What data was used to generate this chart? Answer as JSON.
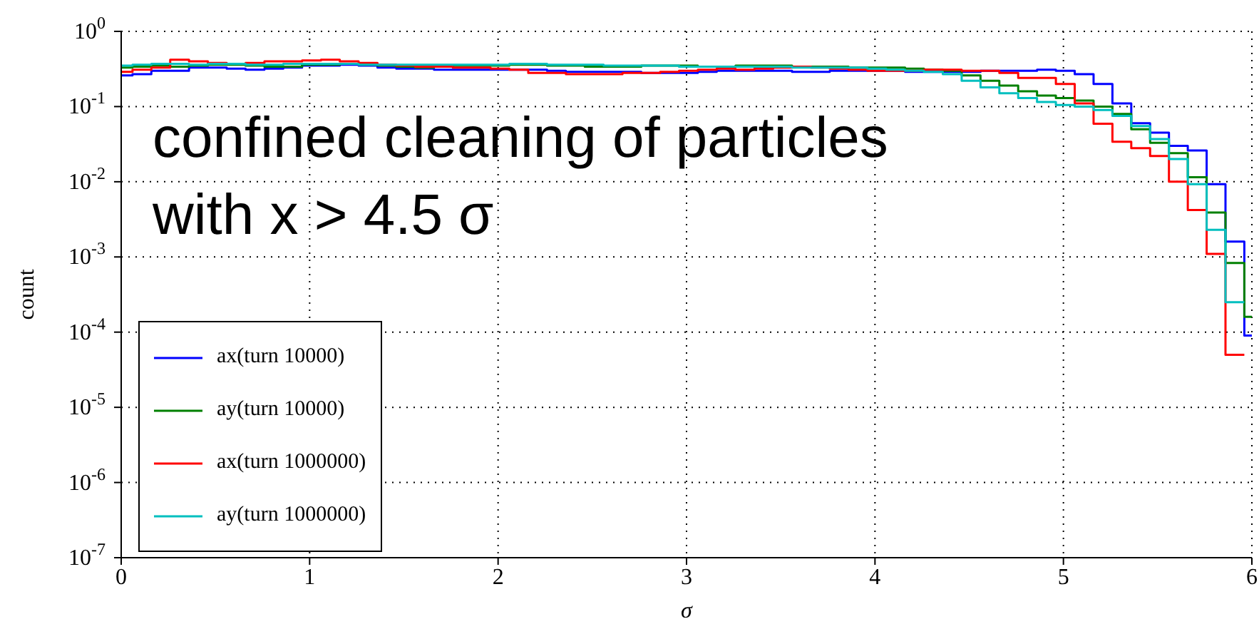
{
  "chart_data": {
    "type": "histogram",
    "xlabel": "σ",
    "ylabel": "count",
    "annotations": [
      "confined cleaning of particles",
      "with x > 4.5 σ"
    ],
    "bins": [
      0,
      0.06,
      0.16,
      0.26,
      0.36,
      0.46,
      0.56,
      0.66,
      0.76,
      0.86,
      0.96,
      1.06,
      1.16,
      1.26,
      1.36,
      1.46,
      1.56,
      1.66,
      1.76,
      1.86,
      1.96,
      2.06,
      2.16,
      2.26,
      2.36,
      2.46,
      2.56,
      2.66,
      2.76,
      2.86,
      2.96,
      3.06,
      3.16,
      3.26,
      3.36,
      3.46,
      3.56,
      3.66,
      3.76,
      3.86,
      3.96,
      4.06,
      4.16,
      4.26,
      4.36,
      4.46,
      4.56,
      4.66,
      4.76,
      4.86,
      4.96,
      5.06,
      5.16,
      5.26,
      5.36,
      5.46,
      5.56,
      5.66,
      5.76,
      5.86,
      5.96,
      6
    ],
    "series": [
      {
        "name": "ax(turn 10000)",
        "color": "#0000ff",
        "values": [
          0.26,
          0.27,
          0.3,
          0.3,
          0.33,
          0.33,
          0.32,
          0.31,
          0.32,
          0.33,
          0.35,
          0.35,
          0.36,
          0.35,
          0.33,
          0.32,
          0.32,
          0.31,
          0.31,
          0.31,
          0.31,
          0.31,
          0.31,
          0.3,
          0.29,
          0.29,
          0.29,
          0.29,
          0.28,
          0.28,
          0.28,
          0.29,
          0.3,
          0.3,
          0.3,
          0.3,
          0.29,
          0.29,
          0.3,
          0.3,
          0.3,
          0.3,
          0.29,
          0.29,
          0.29,
          0.29,
          0.3,
          0.3,
          0.3,
          0.31,
          0.3,
          0.27,
          0.2,
          0.11,
          0.06,
          0.045,
          0.03,
          0.026,
          0.0093,
          0.0016,
          9e-05
        ]
      },
      {
        "name": "ay(turn 10000)",
        "color": "#008000",
        "values": [
          0.33,
          0.34,
          0.35,
          0.34,
          0.35,
          0.36,
          0.36,
          0.35,
          0.34,
          0.34,
          0.36,
          0.36,
          0.37,
          0.36,
          0.35,
          0.34,
          0.33,
          0.34,
          0.35,
          0.35,
          0.35,
          0.36,
          0.36,
          0.35,
          0.35,
          0.34,
          0.34,
          0.34,
          0.35,
          0.35,
          0.35,
          0.34,
          0.34,
          0.35,
          0.35,
          0.35,
          0.34,
          0.34,
          0.34,
          0.33,
          0.33,
          0.33,
          0.32,
          0.31,
          0.3,
          0.26,
          0.22,
          0.19,
          0.16,
          0.14,
          0.13,
          0.12,
          0.1,
          0.08,
          0.05,
          0.033,
          0.024,
          0.0115,
          0.0039,
          0.00083,
          0.00016
        ]
      },
      {
        "name": "ax(turn 1000000)",
        "color": "#ff0000",
        "bins": [
          0,
          0.06,
          0.16,
          0.26,
          0.36,
          0.46,
          0.56,
          0.66,
          0.76,
          0.86,
          0.96,
          1.06,
          1.16,
          1.26,
          1.36,
          1.46,
          1.56,
          1.66,
          1.76,
          1.86,
          1.96,
          2.06,
          2.16,
          2.26,
          2.36,
          2.46,
          2.56,
          2.66,
          2.76,
          2.86,
          2.96,
          3.06,
          3.16,
          3.26,
          3.36,
          3.46,
          3.56,
          3.66,
          3.76,
          3.86,
          3.96,
          4.06,
          4.16,
          4.26,
          4.36,
          4.46,
          4.56,
          4.66,
          4.76,
          4.86,
          4.96,
          5.06,
          5.16,
          5.26,
          5.36,
          5.46,
          5.56,
          5.66,
          5.76,
          5.86,
          5.96
        ],
        "values": [
          0.29,
          0.31,
          0.33,
          0.42,
          0.4,
          0.38,
          0.37,
          0.38,
          0.4,
          0.4,
          0.41,
          0.42,
          0.4,
          0.38,
          0.36,
          0.35,
          0.34,
          0.34,
          0.33,
          0.33,
          0.32,
          0.31,
          0.28,
          0.28,
          0.27,
          0.27,
          0.27,
          0.28,
          0.28,
          0.29,
          0.3,
          0.31,
          0.32,
          0.31,
          0.32,
          0.33,
          0.34,
          0.33,
          0.32,
          0.31,
          0.3,
          0.3,
          0.3,
          0.31,
          0.31,
          0.3,
          0.3,
          0.28,
          0.24,
          0.24,
          0.2,
          0.11,
          0.059,
          0.034,
          0.028,
          0.022,
          0.01,
          0.0042,
          0.0011,
          5e-05
        ]
      },
      {
        "name": "ay(turn 1000000)",
        "color": "#00bfbf",
        "bins": [
          0,
          0.06,
          0.16,
          0.26,
          0.36,
          0.46,
          0.56,
          0.66,
          0.76,
          0.86,
          0.96,
          1.06,
          1.16,
          1.26,
          1.36,
          1.46,
          1.56,
          1.66,
          1.76,
          1.86,
          1.96,
          2.06,
          2.16,
          2.26,
          2.36,
          2.46,
          2.56,
          2.66,
          2.76,
          2.86,
          2.96,
          3.06,
          3.16,
          3.26,
          3.36,
          3.46,
          3.56,
          3.66,
          3.76,
          3.86,
          3.96,
          4.06,
          4.16,
          4.26,
          4.36,
          4.46,
          4.56,
          4.66,
          4.76,
          4.86,
          4.96,
          5.06,
          5.16,
          5.26,
          5.36,
          5.46,
          5.56,
          5.66,
          5.76,
          5.86,
          5.96
        ],
        "values": [
          0.35,
          0.36,
          0.37,
          0.37,
          0.36,
          0.37,
          0.37,
          0.36,
          0.36,
          0.37,
          0.37,
          0.37,
          0.37,
          0.36,
          0.36,
          0.36,
          0.36,
          0.36,
          0.36,
          0.36,
          0.36,
          0.37,
          0.37,
          0.36,
          0.36,
          0.36,
          0.35,
          0.35,
          0.35,
          0.35,
          0.34,
          0.34,
          0.34,
          0.34,
          0.34,
          0.34,
          0.33,
          0.33,
          0.33,
          0.33,
          0.32,
          0.31,
          0.3,
          0.29,
          0.27,
          0.22,
          0.18,
          0.15,
          0.13,
          0.115,
          0.105,
          0.1,
          0.09,
          0.075,
          0.055,
          0.037,
          0.02,
          0.0093,
          0.0023,
          0.00025
        ]
      }
    ],
    "xlim": [
      0,
      6
    ],
    "xticks": [
      0,
      1,
      2,
      3,
      4,
      5,
      6
    ],
    "ylim": [
      1e-07,
      1
    ],
    "yticks": [
      {
        "value": 1e-07,
        "label": "10$^{-7}$"
      },
      {
        "value": 1e-06,
        "label": "10$^{-6}$"
      },
      {
        "value": 1e-05,
        "label": "10$^{-5}$"
      },
      {
        "value": 0.0001,
        "label": "10$^{-4}$"
      },
      {
        "value": 0.001,
        "label": "10$^{-3}$"
      },
      {
        "value": 0.01,
        "label": "10$^{-2}$"
      },
      {
        "value": 0.1,
        "label": "10$^{-1}$"
      },
      {
        "value": 1,
        "label": "10$^{0}$"
      }
    ],
    "log": "y",
    "grid": true,
    "legend": "bottom left"
  }
}
